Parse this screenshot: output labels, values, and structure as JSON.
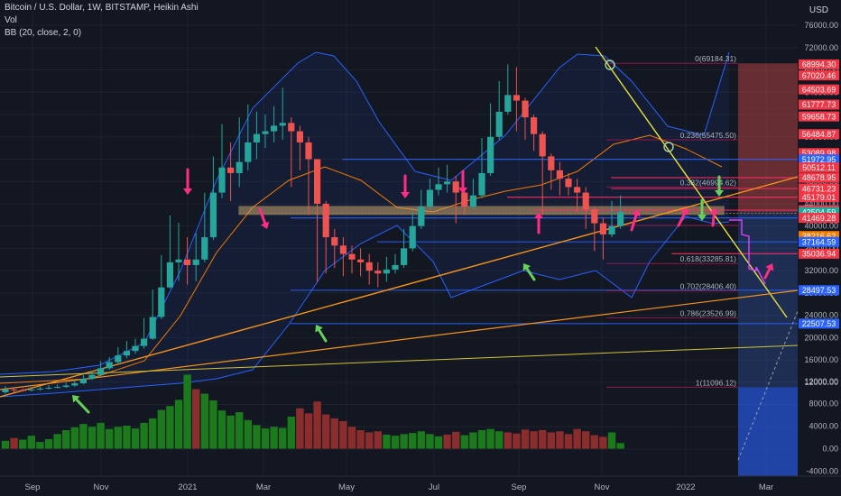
{
  "header": {
    "title": "Bitcoin / U.S. Dollar, 1W, BITSTAMP, Heikin Ashi",
    "vol_label": "Vol",
    "bb_label": "BB (20, close, 2, 0)",
    "currency": "USD"
  },
  "colors": {
    "background": "#131722",
    "up": "#26a69a",
    "down": "#ef5350",
    "vol_up": "#1b7a1b",
    "vol_down": "#8c2d2d",
    "bb_line": "#2962ff",
    "bb_basis": "#f57c00",
    "support": "#2962ff",
    "resistance": "#ff2e63",
    "trend_yellow": "#e8e23a",
    "trend_orange": "#f7931a",
    "arrow_magenta": "#ff2e83",
    "arrow_green": "#66d15a",
    "arrow_violet": "#e040fb",
    "fib": "#b0b4bf"
  },
  "chart_data": {
    "type": "candlestick",
    "price_scale": {
      "ticks": [
        "76000.00",
        "72000.00",
        "68000.00",
        "64000.00",
        "60000.00",
        "56000.00",
        "52000.00",
        "48000.00",
        "44000.00",
        "40000.00",
        "36000.00",
        "32000.00",
        "28000.00",
        "24000.00",
        "20000.00",
        "16000.00",
        "12000.00",
        "8000.00",
        "4000.00",
        "0.00",
        "-4000.00"
      ]
    },
    "time_axis": [
      "Sep",
      "Nov",
      "2021",
      "Mar",
      "May",
      "Jul",
      "Sep",
      "Nov",
      "2022",
      "Mar"
    ],
    "candles": [
      {
        "o": 10200,
        "c": 10700,
        "h": 11300,
        "l": 9900
      },
      {
        "o": 10700,
        "c": 10600,
        "h": 11000,
        "l": 10200
      },
      {
        "o": 10600,
        "c": 10550,
        "h": 10900,
        "l": 10300
      },
      {
        "o": 10550,
        "c": 10700,
        "h": 11100,
        "l": 10350
      },
      {
        "o": 10700,
        "c": 10850,
        "h": 11400,
        "l": 10500
      },
      {
        "o": 10850,
        "c": 11000,
        "h": 11500,
        "l": 10700
      },
      {
        "o": 11000,
        "c": 11150,
        "h": 11600,
        "l": 10900
      },
      {
        "o": 11150,
        "c": 11400,
        "h": 11900,
        "l": 11000
      },
      {
        "o": 11400,
        "c": 11800,
        "h": 12400,
        "l": 11200
      },
      {
        "o": 11800,
        "c": 12600,
        "h": 13300,
        "l": 11600
      },
      {
        "o": 12600,
        "c": 13300,
        "h": 14000,
        "l": 12400
      },
      {
        "o": 13300,
        "c": 14500,
        "h": 15800,
        "l": 13000
      },
      {
        "o": 14500,
        "c": 15600,
        "h": 16500,
        "l": 14200
      },
      {
        "o": 15600,
        "c": 16800,
        "h": 18300,
        "l": 15200
      },
      {
        "o": 16800,
        "c": 17600,
        "h": 19400,
        "l": 16300
      },
      {
        "o": 17600,
        "c": 18500,
        "h": 19800,
        "l": 17100
      },
      {
        "o": 18500,
        "c": 19800,
        "h": 23500,
        "l": 18000
      },
      {
        "o": 19800,
        "c": 23700,
        "h": 28600,
        "l": 19600
      },
      {
        "o": 23700,
        "c": 29000,
        "h": 34800,
        "l": 23300
      },
      {
        "o": 29000,
        "c": 33500,
        "h": 41900,
        "l": 28800
      },
      {
        "o": 33500,
        "c": 34000,
        "h": 40600,
        "l": 30200
      },
      {
        "o": 34000,
        "c": 33000,
        "h": 38000,
        "l": 29500
      },
      {
        "o": 33000,
        "c": 34000,
        "h": 38700,
        "l": 30100
      },
      {
        "o": 34000,
        "c": 38000,
        "h": 46000,
        "l": 33500
      },
      {
        "o": 38000,
        "c": 46000,
        "h": 52500,
        "l": 37500
      },
      {
        "o": 46000,
        "c": 50500,
        "h": 58300,
        "l": 45000
      },
      {
        "o": 50500,
        "c": 49500,
        "h": 55000,
        "l": 44500
      },
      {
        "o": 49500,
        "c": 51500,
        "h": 59500,
        "l": 47000
      },
      {
        "o": 51500,
        "c": 55000,
        "h": 61800,
        "l": 50000
      },
      {
        "o": 55000,
        "c": 56500,
        "h": 60500,
        "l": 52000
      },
      {
        "o": 56500,
        "c": 57000,
        "h": 60000,
        "l": 54000
      },
      {
        "o": 57000,
        "c": 58000,
        "h": 61500,
        "l": 55000
      },
      {
        "o": 58000,
        "c": 58500,
        "h": 64800,
        "l": 55500
      },
      {
        "o": 58500,
        "c": 57000,
        "h": 59500,
        "l": 47000
      },
      {
        "o": 57000,
        "c": 55000,
        "h": 58000,
        "l": 50000
      },
      {
        "o": 55000,
        "c": 52000,
        "h": 56000,
        "l": 42000
      },
      {
        "o": 52000,
        "c": 44000,
        "h": 52000,
        "l": 30000
      },
      {
        "o": 44000,
        "c": 38000,
        "h": 44500,
        "l": 31500
      },
      {
        "o": 38000,
        "c": 36500,
        "h": 39500,
        "l": 32500
      },
      {
        "o": 36500,
        "c": 35000,
        "h": 38000,
        "l": 31000
      },
      {
        "o": 35000,
        "c": 34000,
        "h": 36500,
        "l": 31500
      },
      {
        "o": 34000,
        "c": 33500,
        "h": 36000,
        "l": 31000
      },
      {
        "o": 33500,
        "c": 32000,
        "h": 35000,
        "l": 29500
      },
      {
        "o": 32000,
        "c": 31500,
        "h": 33500,
        "l": 29000
      },
      {
        "o": 31500,
        "c": 32200,
        "h": 34500,
        "l": 30000
      },
      {
        "o": 32200,
        "c": 33000,
        "h": 35000,
        "l": 31500
      },
      {
        "o": 33000,
        "c": 36000,
        "h": 39500,
        "l": 32500
      },
      {
        "o": 36000,
        "c": 40000,
        "h": 42500,
        "l": 35500
      },
      {
        "o": 40000,
        "c": 43500,
        "h": 46500,
        "l": 39500
      },
      {
        "o": 43500,
        "c": 46500,
        "h": 48500,
        "l": 43000
      },
      {
        "o": 46500,
        "c": 47500,
        "h": 50500,
        "l": 45500
      },
      {
        "o": 47500,
        "c": 48000,
        "h": 51000,
        "l": 46000
      },
      {
        "o": 48000,
        "c": 46000,
        "h": 49000,
        "l": 40500
      },
      {
        "o": 46000,
        "c": 43500,
        "h": 46500,
        "l": 42000
      },
      {
        "o": 43500,
        "c": 45500,
        "h": 48500,
        "l": 43000
      },
      {
        "o": 45500,
        "c": 49500,
        "h": 55800,
        "l": 45000
      },
      {
        "o": 49500,
        "c": 56000,
        "h": 62000,
        "l": 49000
      },
      {
        "o": 56000,
        "c": 60500,
        "h": 66000,
        "l": 55500
      },
      {
        "o": 60500,
        "c": 63500,
        "h": 69000,
        "l": 60000
      },
      {
        "o": 63500,
        "c": 62500,
        "h": 68500,
        "l": 57000
      },
      {
        "o": 62500,
        "c": 59500,
        "h": 63000,
        "l": 55500
      },
      {
        "o": 59500,
        "c": 56500,
        "h": 60000,
        "l": 53500
      },
      {
        "o": 56500,
        "c": 52500,
        "h": 57000,
        "l": 42000
      },
      {
        "o": 52500,
        "c": 50000,
        "h": 53000,
        "l": 46500
      },
      {
        "o": 50000,
        "c": 48500,
        "h": 51500,
        "l": 45500
      },
      {
        "o": 48500,
        "c": 47000,
        "h": 49500,
        "l": 45500
      },
      {
        "o": 47000,
        "c": 46000,
        "h": 48500,
        "l": 42500
      },
      {
        "o": 46000,
        "c": 43000,
        "h": 47000,
        "l": 39500
      },
      {
        "o": 43000,
        "c": 40500,
        "h": 43500,
        "l": 35500
      },
      {
        "o": 40500,
        "c": 38500,
        "h": 41500,
        "l": 34000
      },
      {
        "o": 38500,
        "c": 40000,
        "h": 44500,
        "l": 38000
      },
      {
        "o": 40000,
        "c": 42500,
        "h": 45500,
        "l": 39500
      }
    ],
    "volume": {
      "scale_ticks": [
        "12000.00",
        "8000.00",
        "4000.00",
        "0.00",
        "-4000.00"
      ],
      "bars": [
        {
          "v": 1400,
          "up": true
        },
        {
          "v": 1900,
          "up": false
        },
        {
          "v": 1600,
          "up": true
        },
        {
          "v": 2300,
          "up": true
        },
        {
          "v": 1200,
          "up": true
        },
        {
          "v": 1700,
          "up": true
        },
        {
          "v": 2600,
          "up": true
        },
        {
          "v": 3300,
          "up": true
        },
        {
          "v": 3800,
          "up": true
        },
        {
          "v": 4400,
          "up": true
        },
        {
          "v": 3900,
          "up": true
        },
        {
          "v": 4600,
          "up": true
        },
        {
          "v": 3500,
          "up": true
        },
        {
          "v": 3900,
          "up": true
        },
        {
          "v": 4100,
          "up": true
        },
        {
          "v": 3600,
          "up": true
        },
        {
          "v": 4600,
          "up": true
        },
        {
          "v": 5400,
          "up": true
        },
        {
          "v": 6900,
          "up": true
        },
        {
          "v": 7600,
          "up": true
        },
        {
          "v": 8700,
          "up": true
        },
        {
          "v": 13200,
          "up": true
        },
        {
          "v": 10600,
          "up": false
        },
        {
          "v": 9800,
          "up": true
        },
        {
          "v": 8600,
          "up": true
        },
        {
          "v": 6800,
          "up": true
        },
        {
          "v": 5900,
          "up": true
        },
        {
          "v": 6500,
          "up": true
        },
        {
          "v": 5100,
          "up": true
        },
        {
          "v": 4200,
          "up": true
        },
        {
          "v": 3600,
          "up": true
        },
        {
          "v": 3900,
          "up": true
        },
        {
          "v": 3700,
          "up": true
        },
        {
          "v": 5700,
          "up": true
        },
        {
          "v": 7200,
          "up": false
        },
        {
          "v": 6300,
          "up": false
        },
        {
          "v": 8400,
          "up": false
        },
        {
          "v": 6100,
          "up": false
        },
        {
          "v": 5400,
          "up": false
        },
        {
          "v": 4900,
          "up": false
        },
        {
          "v": 3900,
          "up": false
        },
        {
          "v": 3300,
          "up": false
        },
        {
          "v": 2900,
          "up": false
        },
        {
          "v": 3100,
          "up": false
        },
        {
          "v": 2500,
          "up": true
        },
        {
          "v": 2300,
          "up": true
        },
        {
          "v": 2600,
          "up": true
        },
        {
          "v": 2800,
          "up": true
        },
        {
          "v": 3100,
          "up": true
        },
        {
          "v": 2600,
          "up": true
        },
        {
          "v": 2200,
          "up": true
        },
        {
          "v": 2500,
          "up": false
        },
        {
          "v": 3000,
          "up": false
        },
        {
          "v": 2400,
          "up": true
        },
        {
          "v": 2900,
          "up": true
        },
        {
          "v": 3300,
          "up": true
        },
        {
          "v": 3500,
          "up": true
        },
        {
          "v": 3100,
          "up": true
        },
        {
          "v": 2900,
          "up": false
        },
        {
          "v": 2700,
          "up": false
        },
        {
          "v": 3400,
          "up": false
        },
        {
          "v": 3100,
          "up": false
        },
        {
          "v": 3300,
          "up": false
        },
        {
          "v": 2900,
          "up": false
        },
        {
          "v": 3100,
          "up": false
        },
        {
          "v": 2600,
          "up": false
        },
        {
          "v": 3500,
          "up": false
        },
        {
          "v": 3100,
          "up": false
        },
        {
          "v": 2400,
          "up": false
        },
        {
          "v": 2100,
          "up": false
        },
        {
          "v": 2900,
          "up": true
        },
        {
          "v": 1000,
          "up": true
        }
      ]
    },
    "horizontal_levels": [
      {
        "price": 51972.95,
        "color": "#2962ff",
        "start": 41,
        "end": 76
      },
      {
        "price": 48678.95,
        "color": "#ff2e63",
        "start": 72,
        "end": 76
      },
      {
        "price": 46731.23,
        "color": "#ff2e63",
        "start": 72,
        "end": 76
      },
      {
        "price": 45179.01,
        "color": "#ff2e63",
        "start": 60,
        "end": 76
      },
      {
        "price": 42848.27,
        "color": "#ff2e63",
        "start": 63,
        "end": 76
      },
      {
        "price": 41469.28,
        "color": "#2962ff",
        "start": 35,
        "end": 76
      },
      {
        "price": 37164.59,
        "color": "#2962ff",
        "start": 45,
        "end": 76
      },
      {
        "price": 35036.94,
        "color": "#ff2e63",
        "start": 79,
        "end": 83
      },
      {
        "price": 28497.53,
        "color": "#2962ff",
        "start": 35,
        "end": 84
      },
      {
        "price": 22507.53,
        "color": "#2962ff",
        "start": 35,
        "end": 84
      }
    ],
    "support_zone": {
      "from": 42000,
      "to": 43600,
      "start": 29,
      "end": 83
    },
    "fibonacci": {
      "levels": [
        {
          "ratio": "0",
          "price": 69184.31,
          "label": "0(69184.31)"
        },
        {
          "ratio": "0.236",
          "price": 55475.5,
          "label": "0.236(55475.50)"
        },
        {
          "ratio": "0.382",
          "price": 46994.62,
          "label": "0.382(46994.62)"
        },
        {
          "ratio": "0.5",
          "price": 40140.21,
          "label": ""
        },
        {
          "ratio": "0.618",
          "price": 33285.81,
          "label": "0.618(33285.81)"
        },
        {
          "ratio": "0.702",
          "price": 28406.4,
          "label": "0.702(28406.40)"
        },
        {
          "ratio": "0.786",
          "price": 23526.99,
          "label": "0.786(23526.99)"
        },
        {
          "ratio": "1",
          "price": 11096.12,
          "label": "1(11096.12)"
        }
      ]
    },
    "price_labels": [
      {
        "price": 68994.3,
        "text": "68994.30",
        "color": "#f23645"
      },
      {
        "price": 67020.46,
        "text": "67020.46",
        "color": "#f23645"
      },
      {
        "price": 64503.69,
        "text": "64503.69",
        "color": "#f23645"
      },
      {
        "price": 61777.73,
        "text": "61777.73",
        "color": "#f23645"
      },
      {
        "price": 59658.73,
        "text": "59658.73",
        "color": "#f23645"
      },
      {
        "price": 56484.87,
        "text": "56484.87",
        "color": "#f23645"
      },
      {
        "price": 53089.98,
        "text": "53089.98",
        "color": "#f23645"
      },
      {
        "price": 51972.95,
        "text": "51972.95",
        "color": "#2962ff"
      },
      {
        "price": 50512.11,
        "text": "50512.11",
        "color": "#f23645"
      },
      {
        "price": 48678.95,
        "text": "48678.95",
        "color": "#f23645"
      },
      {
        "price": 46731.23,
        "text": "46731.23",
        "color": "#f23645"
      },
      {
        "price": 45179.01,
        "text": "45179.01",
        "color": "#f23645"
      },
      {
        "price": 42848.27,
        "text": "42848.27",
        "color": "#f23645"
      },
      {
        "price": 42504.59,
        "text": "42504.59",
        "color": "#26a69a"
      },
      {
        "price": 41469.28,
        "text": "41469.28",
        "color": "#f23645"
      },
      {
        "price": 38216.62,
        "text": "38216.62",
        "color": "#f57c00"
      },
      {
        "price": 37164.59,
        "text": "37164.59",
        "color": "#2962ff"
      },
      {
        "price": 35036.94,
        "text": "35036.94",
        "color": "#f23645"
      },
      {
        "price": 28497.53,
        "text": "28497.53",
        "color": "#2962ff"
      },
      {
        "price": 22507.53,
        "text": "22507.53",
        "color": "#2962ff"
      }
    ]
  }
}
